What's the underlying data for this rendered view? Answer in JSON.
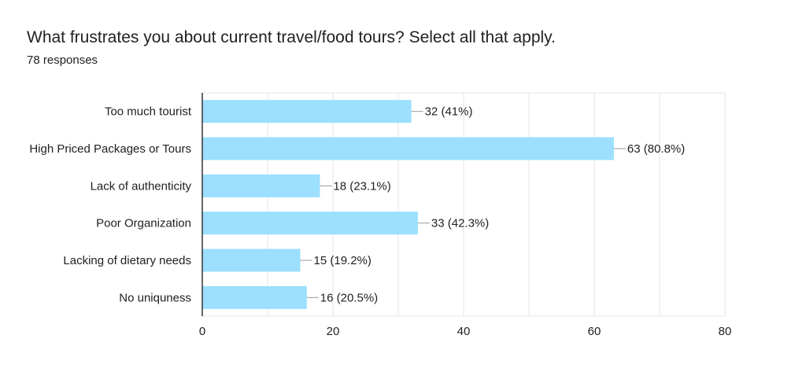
{
  "question": {
    "title": "What frustrates you about current travel/food tours? Select all that apply.",
    "responses": "78 responses"
  },
  "colors": {
    "bar": "#9cdfff",
    "grid": "#e6e6e6",
    "axis": "#333333",
    "text": "#202124",
    "leader": "#999999"
  },
  "chart_data": {
    "type": "bar",
    "orientation": "horizontal",
    "categories": [
      "Too much tourist",
      "High Priced Packages or Tours",
      "Lack of authenticity",
      "Poor Organization",
      "Lacking of dietary needs",
      "No uniquness"
    ],
    "values": [
      32,
      63,
      18,
      33,
      15,
      16
    ],
    "data_labels": [
      "32 (41%)",
      "63 (80.8%)",
      "18 (23.1%)",
      "33 (42.3%)",
      "15 (19.2%)",
      "16 (20.5%)"
    ],
    "xlim": [
      0,
      80
    ],
    "major_ticks": [
      0,
      20,
      40,
      60,
      80
    ],
    "minor_ticks": [
      10,
      30,
      50,
      70
    ],
    "grid": true,
    "legend": "none"
  }
}
